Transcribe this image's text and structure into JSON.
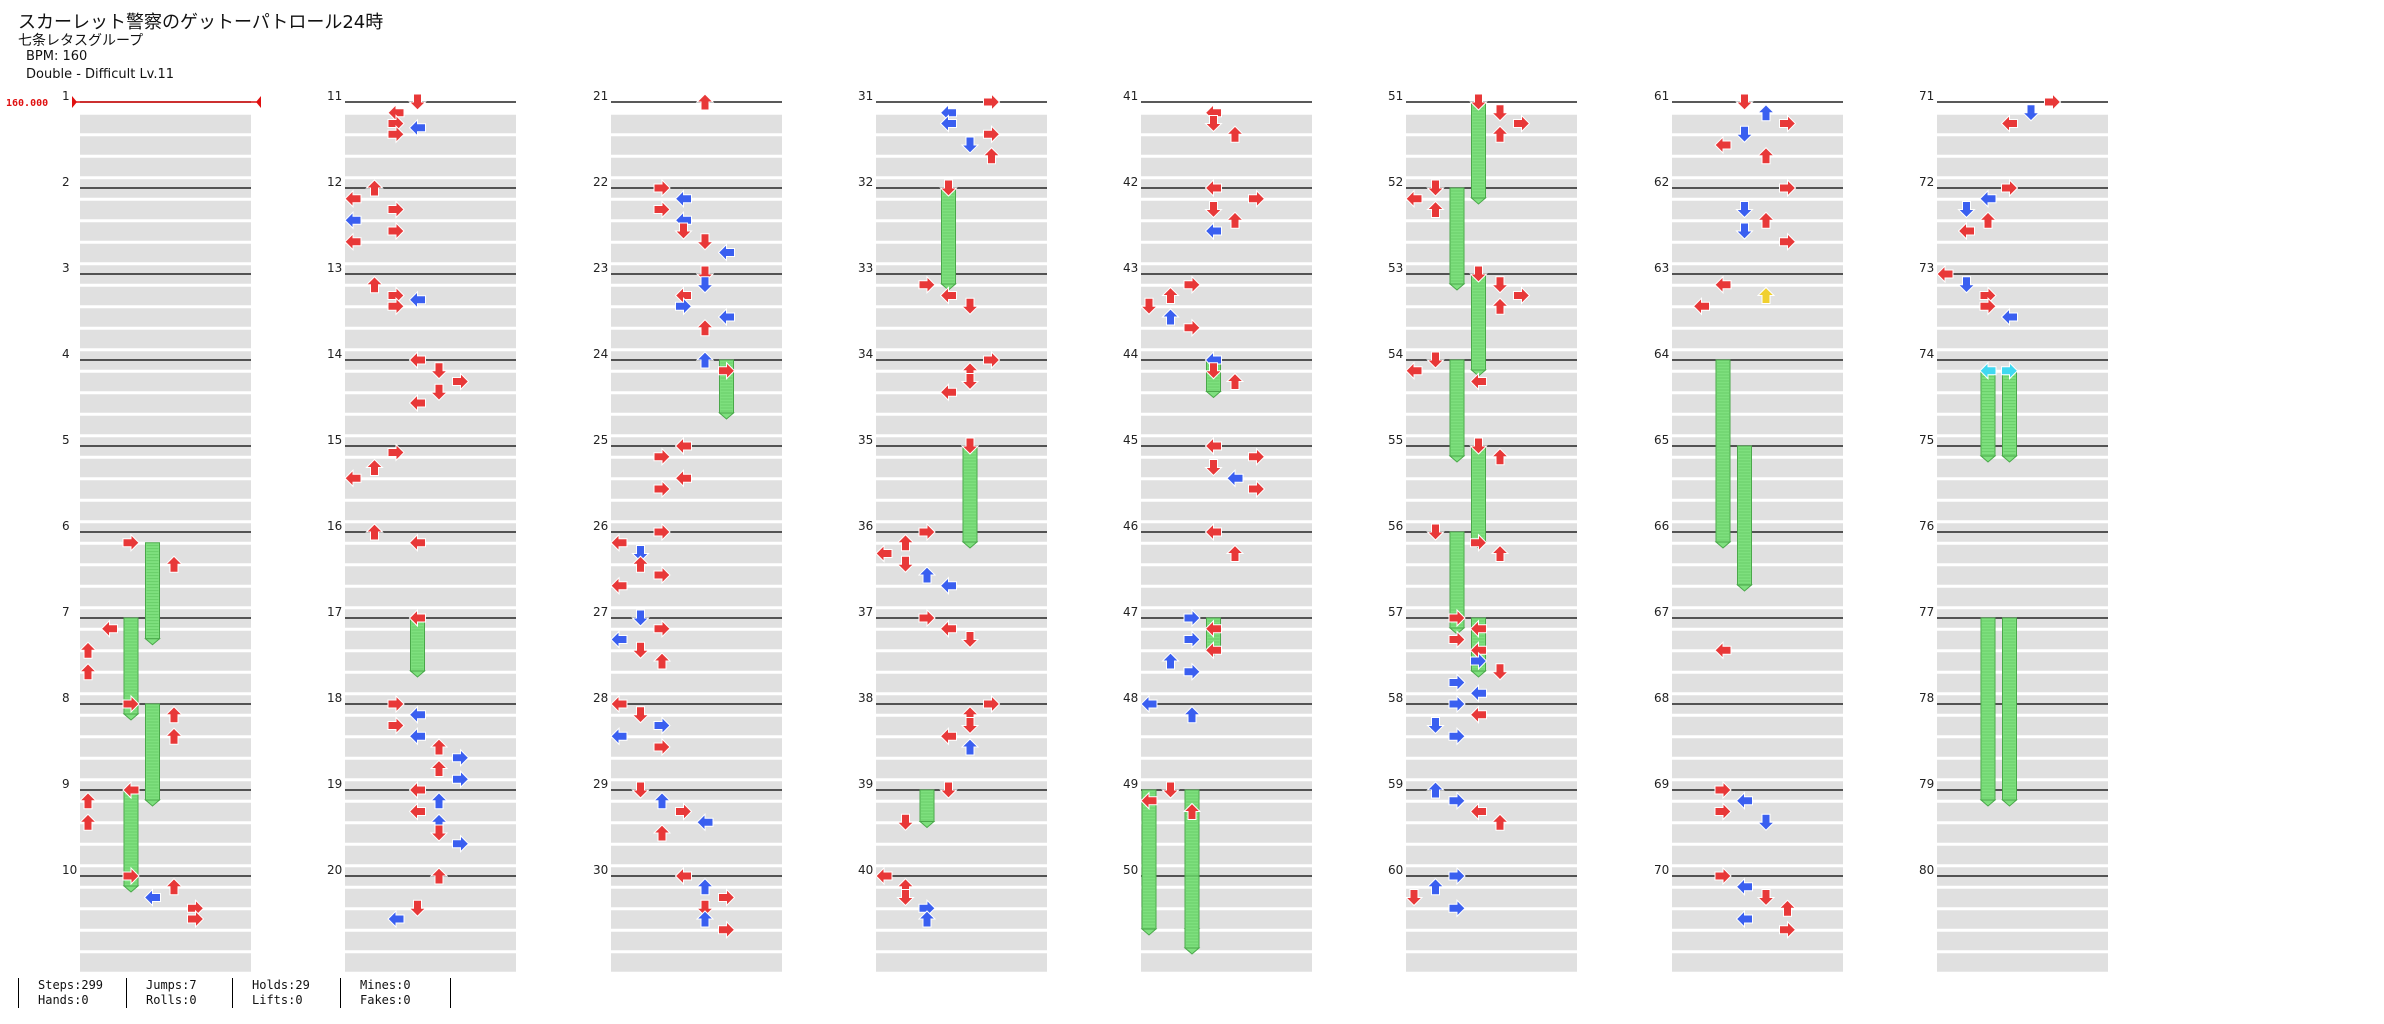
{
  "song": {
    "title": "スカーレット警察のゲットーパトロール24時",
    "artist": "七条レタスグループ",
    "bpm_label": "BPM: 160",
    "difficulty_label": "Double - Difficult  Lv.11"
  },
  "bpm_marker": "160.000",
  "measure_numbers": [
    "1",
    "2",
    "3",
    "4",
    "5",
    "6",
    "7",
    "8",
    "9",
    "10",
    "11",
    "12",
    "13",
    "14",
    "15",
    "16",
    "17",
    "18",
    "19",
    "20",
    "21",
    "22",
    "23",
    "24",
    "25",
    "26",
    "27",
    "28",
    "29",
    "30",
    "31",
    "32",
    "33",
    "34",
    "35",
    "36",
    "37",
    "38",
    "39",
    "40",
    "41",
    "42",
    "43",
    "44",
    "45",
    "46",
    "47",
    "48",
    "49",
    "50",
    "51",
    "52",
    "53",
    "54",
    "55",
    "56",
    "57",
    "58",
    "59",
    "60",
    "61",
    "62",
    "63",
    "64",
    "65",
    "66",
    "67",
    "68",
    "69",
    "70",
    "71",
    "72",
    "73",
    "74",
    "75",
    "76",
    "77",
    "78",
    "79",
    "80"
  ],
  "colors": {
    "note_red": "#e83838",
    "note_blue": "#3a5ff0",
    "hold_green": "#7ee07e",
    "mine_cyan": "#40d8f0",
    "yellow": "#f0d030",
    "bpm_red": "#e01010",
    "stripe": "#e0e0e0"
  },
  "stats": {
    "steps": "Steps:299",
    "hands": "Hands:0",
    "jumps": "Jumps:7",
    "rolls": "Rolls:0",
    "holds": "Holds:29",
    "lifts": "Lifts:0",
    "mines": "Mines:0",
    "fakes": "Fakes:0"
  }
}
